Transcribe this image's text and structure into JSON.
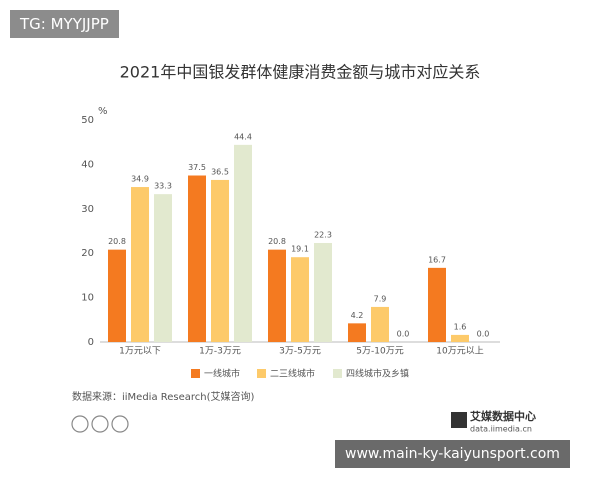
{
  "chart_data": {
    "type": "bar",
    "title": "2021年中国银发群体健康消费金额与城市对应关系",
    "y_unit": "%",
    "categories": [
      "1万元以下",
      "1万-3万元",
      "3万-5万元",
      "5万-10万元",
      "10万元以上"
    ],
    "series": [
      {
        "name": "一线城市",
        "color": "#f47a20",
        "values": [
          20.8,
          37.5,
          20.8,
          4.2,
          16.7
        ],
        "value_labels": [
          "20.8",
          "37.5",
          "20.8",
          "4.2",
          "16.7"
        ]
      },
      {
        "name": "二三线城市",
        "color": "#fdca6a",
        "values": [
          34.9,
          36.5,
          19.1,
          7.9,
          1.6
        ],
        "value_labels": [
          "34.9",
          "36.5",
          "19.1",
          "7.9",
          "1.6"
        ]
      },
      {
        "name": "四线城市及乡镇",
        "color": "#e2e9cf",
        "values": [
          33.3,
          44.4,
          22.3,
          0,
          0
        ],
        "value_labels": [
          "33.3",
          "44.4",
          "22.3",
          "0.0",
          "0.0"
        ]
      }
    ],
    "ylim": [
      0,
      50
    ],
    "yticks": [
      0,
      10,
      20,
      30,
      40,
      50
    ],
    "grid": false,
    "legend": "bottom",
    "source": "数据来源：iiMedia Research(艾媒咨询)"
  },
  "watermark": "TG: MYYJJPP",
  "logo": {
    "name": "艾媒数据中心",
    "url": "data.iimedia.cn"
  },
  "footer_url": "www.main-ky-kaiyunsport.com"
}
